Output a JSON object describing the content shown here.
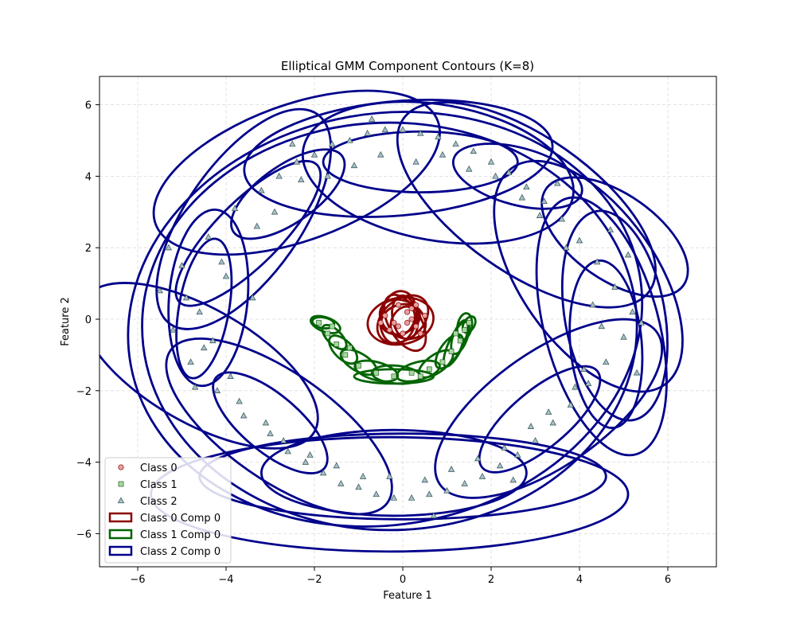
{
  "chart_data": {
    "type": "scatter",
    "title": "Elliptical GMM Component Contours (K=8)",
    "xlabel": "Feature 1",
    "ylabel": "Feature 2",
    "xlim": [
      -6.8,
      7.1
    ],
    "ylim": [
      -7.0,
      6.8
    ],
    "xticks": [
      -6,
      -4,
      -2,
      0,
      2,
      4,
      6
    ],
    "yticks": [
      -6,
      -4,
      -2,
      0,
      2,
      4,
      6
    ],
    "grid": true,
    "legend_position": "lower-left",
    "legend": [
      {
        "label": "Class 0",
        "kind": "marker",
        "marker": "circle",
        "color": "#e8a0a0",
        "edge": "#8b0000"
      },
      {
        "label": "Class 1",
        "kind": "marker",
        "marker": "square",
        "color": "#a8d8a0",
        "edge": "#1f5f1f"
      },
      {
        "label": "Class 2",
        "kind": "marker",
        "marker": "triangle",
        "color": "#a8c0c8",
        "edge": "#2f4f4f"
      },
      {
        "label": "Class 0 Comp 0",
        "kind": "patch",
        "color": "#8b0000"
      },
      {
        "label": "Class 1 Comp 0",
        "kind": "patch",
        "color": "#006400"
      },
      {
        "label": "Class 2 Comp 0",
        "kind": "patch",
        "color": "#00008b"
      }
    ],
    "series": [
      {
        "name": "Class 0",
        "marker": "circle",
        "color": "#e8a0a0",
        "edge": "#8b0000",
        "points": [
          [
            -0.2,
            -0.1
          ],
          [
            0.1,
            0.2
          ],
          [
            0.3,
            -0.2
          ],
          [
            -0.4,
            0.1
          ],
          [
            0.0,
            -0.4
          ],
          [
            0.2,
            0.3
          ],
          [
            -0.1,
            0.4
          ],
          [
            0.5,
            0.1
          ],
          [
            -0.3,
            -0.3
          ],
          [
            0.1,
            -0.1
          ],
          [
            0.4,
            -0.4
          ],
          [
            -0.5,
            -0.1
          ],
          [
            0.2,
            0.0
          ],
          [
            -0.1,
            -0.2
          ],
          [
            0.3,
            0.4
          ]
        ]
      },
      {
        "name": "Class 1",
        "marker": "square",
        "color": "#a8d8a0",
        "edge": "#1f5f1f",
        "points": [
          [
            -1.9,
            -0.1
          ],
          [
            -1.7,
            -0.4
          ],
          [
            -1.5,
            -0.7
          ],
          [
            -1.3,
            -1.0
          ],
          [
            -1.0,
            -1.3
          ],
          [
            -0.6,
            -1.5
          ],
          [
            -0.2,
            -1.6
          ],
          [
            0.2,
            -1.5
          ],
          [
            0.6,
            -1.4
          ],
          [
            0.9,
            -1.2
          ],
          [
            1.1,
            -0.9
          ],
          [
            1.3,
            -0.6
          ],
          [
            1.4,
            -0.3
          ],
          [
            1.5,
            -0.1
          ],
          [
            -1.6,
            -0.2
          ],
          [
            -1.2,
            -0.8
          ],
          [
            0.4,
            -1.6
          ],
          [
            1.2,
            -0.4
          ]
        ]
      },
      {
        "name": "Class 2",
        "marker": "triangle",
        "color": "#a8c0c8",
        "edge": "#2f4f4f",
        "points": [
          [
            -5.5,
            0.8
          ],
          [
            -5.2,
            -0.3
          ],
          [
            -5.0,
            1.5
          ],
          [
            -4.8,
            -1.2
          ],
          [
            -4.6,
            0.2
          ],
          [
            -4.4,
            2.3
          ],
          [
            -4.2,
            -2.0
          ],
          [
            -4.0,
            1.2
          ],
          [
            -3.8,
            3.1
          ],
          [
            -3.6,
            -2.7
          ],
          [
            -3.4,
            0.6
          ],
          [
            -3.2,
            3.6
          ],
          [
            -3.0,
            -3.2
          ],
          [
            -2.8,
            4.0
          ],
          [
            -2.6,
            -3.7
          ],
          [
            -2.4,
            4.4
          ],
          [
            -2.2,
            -4.0
          ],
          [
            -2.0,
            4.6
          ],
          [
            -1.8,
            -4.3
          ],
          [
            -1.6,
            4.9
          ],
          [
            -1.4,
            -4.6
          ],
          [
            -1.2,
            5.0
          ],
          [
            -1.0,
            -4.7
          ],
          [
            -0.8,
            5.2
          ],
          [
            -0.6,
            -4.9
          ],
          [
            -0.4,
            5.3
          ],
          [
            -0.2,
            -5.0
          ],
          [
            0.0,
            5.3
          ],
          [
            0.2,
            -5.0
          ],
          [
            0.4,
            5.2
          ],
          [
            0.6,
            -4.9
          ],
          [
            0.8,
            5.1
          ],
          [
            1.0,
            -4.8
          ],
          [
            1.2,
            4.9
          ],
          [
            1.4,
            -4.6
          ],
          [
            1.6,
            4.7
          ],
          [
            1.8,
            -4.4
          ],
          [
            2.0,
            4.4
          ],
          [
            2.2,
            -4.1
          ],
          [
            2.4,
            4.1
          ],
          [
            2.6,
            -3.8
          ],
          [
            2.8,
            3.7
          ],
          [
            3.0,
            -3.4
          ],
          [
            3.2,
            3.3
          ],
          [
            3.4,
            -2.9
          ],
          [
            3.6,
            2.8
          ],
          [
            3.8,
            -2.4
          ],
          [
            4.0,
            2.2
          ],
          [
            4.2,
            -1.8
          ],
          [
            4.4,
            1.6
          ],
          [
            4.6,
            -1.2
          ],
          [
            4.8,
            0.9
          ],
          [
            5.0,
            -0.5
          ],
          [
            5.2,
            0.2
          ],
          [
            5.4,
            -0.1
          ],
          [
            -4.9,
            0.6
          ],
          [
            -4.5,
            -0.8
          ],
          [
            -3.9,
            -1.6
          ],
          [
            -3.3,
            2.6
          ],
          [
            -2.3,
            3.9
          ],
          [
            -1.1,
            4.3
          ],
          [
            0.3,
            4.4
          ],
          [
            1.5,
            4.2
          ],
          [
            2.7,
            3.4
          ],
          [
            3.7,
            2.0
          ],
          [
            4.3,
            0.4
          ],
          [
            4.1,
            -1.4
          ],
          [
            3.3,
            -2.6
          ],
          [
            2.3,
            -3.6
          ],
          [
            1.1,
            -4.2
          ],
          [
            -0.3,
            -4.4
          ],
          [
            -1.5,
            -4.1
          ],
          [
            -2.7,
            -3.4
          ],
          [
            -3.7,
            -2.3
          ],
          [
            -4.3,
            -0.6
          ],
          [
            -4.1,
            1.6
          ],
          [
            -2.9,
            3.0
          ],
          [
            -1.7,
            4.0
          ],
          [
            -0.5,
            4.6
          ],
          [
            0.9,
            4.6
          ],
          [
            2.1,
            4.0
          ],
          [
            3.1,
            2.9
          ],
          [
            4.5,
            -0.2
          ],
          [
            3.9,
            -1.9
          ],
          [
            2.9,
            -3.0
          ],
          [
            1.7,
            -3.9
          ],
          [
            0.5,
            -4.5
          ],
          [
            -0.9,
            -4.4
          ],
          [
            -2.1,
            -3.8
          ],
          [
            -3.1,
            -2.9
          ],
          [
            -5.3,
            2.0
          ],
          [
            -4.7,
            -1.9
          ],
          [
            5.3,
            -1.5
          ],
          [
            5.1,
            1.8
          ],
          [
            4.7,
            2.5
          ],
          [
            -0.7,
            5.6
          ],
          [
            0.7,
            -5.5
          ],
          [
            2.5,
            -4.5
          ],
          [
            -2.5,
            4.9
          ],
          [
            3.5,
            3.8
          ]
        ]
      }
    ],
    "components": [
      {
        "name": "Class 0 Comp 0",
        "class": 0,
        "color": "#8b0000",
        "ellipses": [
          [
            -0.05,
            -0.05,
            0.75,
            0.65,
            10
          ],
          [
            0.0,
            0.0,
            0.65,
            0.55,
            40
          ],
          [
            -0.1,
            0.05,
            0.6,
            0.5,
            80
          ],
          [
            0.05,
            -0.1,
            0.7,
            0.45,
            120
          ],
          [
            0.0,
            0.0,
            0.55,
            0.5,
            150
          ],
          [
            -0.05,
            0.0,
            0.45,
            0.4,
            20
          ],
          [
            0.05,
            0.05,
            0.5,
            0.35,
            100
          ],
          [
            0.0,
            -0.05,
            0.35,
            0.3,
            60
          ]
        ]
      },
      {
        "name": "Class 1 Comp 0",
        "class": 1,
        "color": "#006400",
        "ellipses": [
          [
            -1.75,
            -0.15,
            0.35,
            0.2,
            -20
          ],
          [
            -1.55,
            -0.5,
            0.35,
            0.2,
            -45
          ],
          [
            -1.35,
            -0.85,
            0.4,
            0.25,
            -45
          ],
          [
            -1.0,
            -1.2,
            0.45,
            0.25,
            -30
          ],
          [
            -0.6,
            -1.45,
            0.5,
            0.25,
            -15
          ],
          [
            -0.15,
            -1.55,
            0.55,
            0.25,
            -5
          ],
          [
            0.35,
            -1.45,
            0.5,
            0.25,
            15
          ],
          [
            0.75,
            -1.25,
            0.45,
            0.25,
            35
          ],
          [
            1.05,
            -0.9,
            0.45,
            0.25,
            55
          ],
          [
            1.3,
            -0.5,
            0.4,
            0.2,
            70
          ],
          [
            1.4,
            -0.2,
            0.3,
            0.2,
            80
          ],
          [
            -1.8,
            -0.1,
            0.25,
            0.15,
            -10
          ],
          [
            1.5,
            -0.15,
            0.2,
            0.15,
            60
          ],
          [
            -0.2,
            -1.6,
            0.9,
            0.2,
            0
          ],
          [
            1.2,
            -0.7,
            0.55,
            0.2,
            65
          ]
        ]
      },
      {
        "name": "Class 2 Comp 0",
        "class": 2,
        "color": "#00008b",
        "ellipses": [
          [
            -0.4,
            0.0,
            5.85,
            5.75,
            10
          ],
          [
            -0.3,
            -0.2,
            5.6,
            5.7,
            0
          ],
          [
            0.8,
            4.1,
            3.1,
            1.9,
            -10
          ],
          [
            -0.1,
            4.5,
            3.5,
            1.6,
            5
          ],
          [
            0.4,
            4.4,
            2.2,
            0.85,
            0
          ],
          [
            2.6,
            4.0,
            1.5,
            0.8,
            -15
          ],
          [
            2.8,
            3.2,
            3.4,
            1.9,
            -35
          ],
          [
            4.8,
            2.3,
            1.9,
            1.2,
            -35
          ],
          [
            4.2,
            1.2,
            3.0,
            1.9,
            -55
          ],
          [
            4.5,
            -0.2,
            3.0,
            1.6,
            -75
          ],
          [
            4.8,
            0.1,
            2.4,
            1.4,
            -80
          ],
          [
            4.6,
            -0.7,
            1.9,
            1.0,
            -85
          ],
          [
            3.3,
            -2.5,
            3.0,
            1.6,
            35
          ],
          [
            3.1,
            -2.8,
            1.7,
            0.8,
            40
          ],
          [
            -0.2,
            -4.3,
            3.0,
            1.2,
            0
          ],
          [
            0.0,
            -4.4,
            4.6,
            1.2,
            0
          ],
          [
            -0.3,
            -4.9,
            5.4,
            1.6,
            0
          ],
          [
            -2.8,
            -3.0,
            3.0,
            1.5,
            -35
          ],
          [
            -3.0,
            -2.9,
            1.6,
            0.8,
            -40
          ],
          [
            -4.6,
            -1.3,
            3.0,
            1.6,
            -30
          ],
          [
            -4.4,
            0.6,
            2.0,
            1.1,
            85
          ],
          [
            -4.5,
            0.3,
            1.6,
            0.7,
            80
          ],
          [
            -3.6,
            2.8,
            2.9,
            1.6,
            55
          ],
          [
            -3.5,
            2.4,
            2.2,
            0.9,
            45
          ],
          [
            -2.4,
            4.1,
            3.4,
            1.9,
            20
          ],
          [
            -2.6,
            3.5,
            1.5,
            0.8,
            35
          ]
        ]
      }
    ]
  }
}
